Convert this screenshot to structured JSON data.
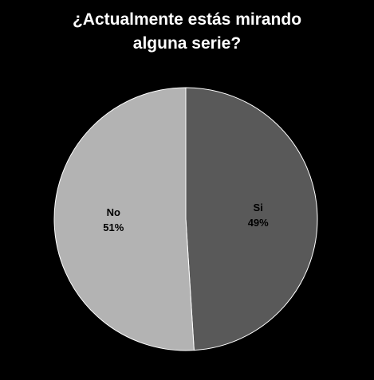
{
  "chart_data": {
    "type": "pie",
    "title_lines": [
      "¿Actualmente estás mirando",
      "alguna serie?"
    ],
    "slices": [
      {
        "label": "Si",
        "value": 49,
        "value_text": "49%",
        "color": "#595959"
      },
      {
        "label": "No",
        "value": 51,
        "value_text": "51%",
        "color": "#b3b3b3"
      }
    ],
    "start": "12 o'clock",
    "direction": "clockwise",
    "slice_border_color": "#ffffff",
    "background_color": "#000000",
    "legend": "none"
  }
}
